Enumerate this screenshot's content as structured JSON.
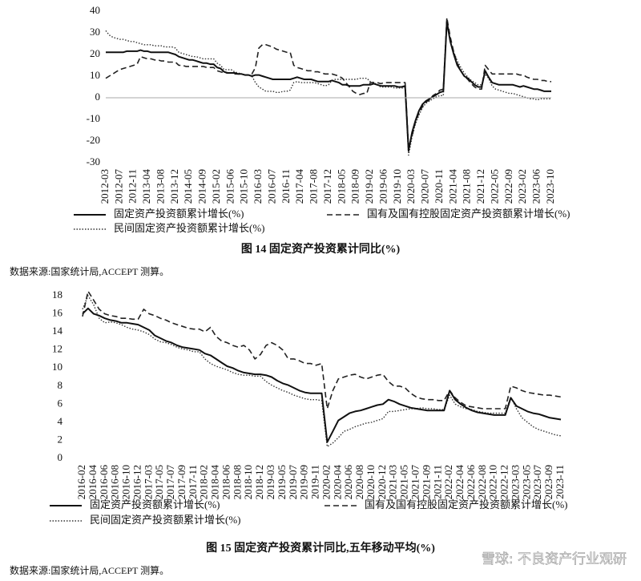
{
  "chart_data": [
    {
      "type": "line",
      "title": "图 14  固定资产投资累计同比(%)",
      "source": "数据来源:国家统计局,ACCEPT 测算。",
      "ylim": [
        -30,
        40
      ],
      "yticks": [
        -30,
        -20,
        -10,
        0,
        10,
        20,
        30,
        40
      ],
      "zero_line": true,
      "categories": [
        "2012-03",
        null,
        null,
        null,
        "2012-07",
        null,
        null,
        null,
        "2012-11",
        null,
        null,
        null,
        "2013-04",
        null,
        null,
        null,
        "2013-08",
        null,
        null,
        null,
        "2013-12",
        null,
        null,
        null,
        "2014-05",
        null,
        null,
        null,
        "2014-09",
        null,
        null,
        null,
        "2015-02",
        null,
        null,
        null,
        "2015-06",
        null,
        null,
        null,
        "2015-10",
        null,
        null,
        null,
        "2016-03",
        null,
        null,
        null,
        "2016-07",
        null,
        null,
        null,
        "2016-11",
        null,
        null,
        null,
        "2017-04",
        null,
        null,
        null,
        "2017-08",
        null,
        null,
        null,
        "2017-12",
        null,
        null,
        null,
        "2018-05",
        null,
        null,
        null,
        "2018-09",
        null,
        null,
        null,
        "2019-02",
        null,
        null,
        null,
        "2019-06",
        null,
        null,
        null,
        "2019-10",
        null,
        null,
        null,
        "2020-03",
        null,
        null,
        null,
        "2020-07",
        null,
        null,
        null,
        "2020-11",
        null,
        null,
        null,
        "2021-04",
        null,
        null,
        null,
        "2021-08",
        null,
        null,
        null,
        "2021-12",
        null,
        null,
        null,
        "2022-05",
        null,
        null,
        null,
        "2022-09",
        null,
        null,
        null,
        "2023-02",
        null,
        null,
        null,
        "2023-06",
        null,
        null,
        null,
        "2023-10"
      ],
      "series": [
        {
          "name": "固定资产投资额累计增长(%)",
          "color": "#111",
          "style": "solid",
          "values": [
            21,
            21,
            21,
            21,
            21,
            21,
            21.5,
            21.5,
            21.5,
            21.5,
            22,
            21.5,
            21.5,
            21,
            21,
            21,
            21,
            21,
            21,
            20.5,
            20,
            19,
            18.5,
            18,
            17.5,
            17.5,
            17,
            16.5,
            16,
            16,
            15.5,
            15.5,
            14,
            13.5,
            12,
            11.5,
            11.5,
            11.5,
            11,
            11,
            10.5,
            10.5,
            10,
            10.5,
            10.5,
            10,
            9.5,
            9,
            8.5,
            8.5,
            8.5,
            8.5,
            8.5,
            8.5,
            9,
            9.5,
            9,
            8.5,
            8.5,
            8.5,
            8,
            7.5,
            7.5,
            7.5,
            7.5,
            8,
            7.5,
            7,
            6,
            6,
            5.5,
            5.5,
            5.5,
            5.5,
            6,
            6,
            6,
            6.5,
            6,
            5.5,
            5.5,
            5.5,
            5.5,
            5.5,
            5,
            5,
            5.5,
            -24.5,
            -16,
            -10.5,
            -6,
            -3,
            -1.5,
            -0.5,
            0.5,
            1.5,
            2.5,
            3,
            35,
            26,
            20,
            15,
            12.5,
            10,
            9,
            7.5,
            6,
            5,
            5,
            12.5,
            9.5,
            7,
            6.5,
            6,
            6,
            6,
            6,
            6,
            5.5,
            5,
            5.5,
            5,
            4.5,
            4,
            4,
            3.5,
            3,
            3,
            3
          ]
        },
        {
          "name": "国有及国有控股固定资产投资额累计增长(%)",
          "color": "#222",
          "style": "dashed",
          "values": [
            9,
            10,
            11,
            12,
            13,
            13.5,
            14,
            14.5,
            15,
            15.5,
            19,
            18.5,
            18,
            18,
            17.5,
            17.5,
            17,
            17,
            16.5,
            16.5,
            16.5,
            15,
            15,
            14.5,
            14.5,
            14.5,
            14.5,
            14.5,
            14.5,
            14,
            14,
            14,
            12.5,
            12,
            11.5,
            11.5,
            11.5,
            11,
            11,
            11,
            10.5,
            10.5,
            11,
            14,
            23,
            24.5,
            24.5,
            24,
            23.5,
            22.5,
            22,
            21.5,
            21,
            21,
            15,
            14,
            13.5,
            13,
            12.5,
            12.5,
            12,
            12,
            11.5,
            11,
            11,
            11,
            10.5,
            10,
            9,
            7,
            5,
            3,
            2,
            1.5,
            2,
            2,
            7,
            7,
            7,
            6.5,
            7,
            7,
            7,
            7,
            7,
            7,
            7,
            -23,
            -17.5,
            -11,
            -7,
            -4,
            -2,
            -1,
            1,
            2,
            3.5,
            4,
            37,
            28,
            21,
            16,
            12.5,
            10,
            8.5,
            6.5,
            5,
            4,
            4,
            15,
            13,
            11,
            11,
            11,
            11,
            11,
            11,
            11,
            11,
            10.5,
            10.5,
            9.5,
            9,
            8.5,
            8.5,
            8,
            8,
            7.5,
            7.5
          ]
        },
        {
          "name": "民间固定资产投资额累计增长(%)",
          "color": "#333",
          "style": "dotted",
          "values": [
            31,
            29,
            28,
            27.5,
            27,
            27,
            26.5,
            26,
            26,
            25.5,
            25,
            24.5,
            24.5,
            24.5,
            24,
            24,
            24,
            23.5,
            23.5,
            23.5,
            23,
            21,
            20.5,
            20,
            19.5,
            19,
            19,
            18.5,
            18,
            18,
            18,
            18,
            16,
            15,
            13,
            13,
            13,
            12,
            11.5,
            11,
            10.5,
            10.5,
            10,
            7,
            5,
            4,
            3,
            3,
            3,
            2.5,
            2.5,
            3,
            3,
            3.5,
            7,
            7.5,
            7,
            7,
            7,
            7,
            7,
            6.5,
            6,
            5.5,
            6,
            8,
            8.5,
            8.5,
            8.5,
            8.5,
            8.5,
            8.5,
            8.5,
            9,
            9,
            9,
            7.5,
            7,
            6,
            5,
            5,
            5,
            5,
            4.5,
            4.5,
            4.5,
            4.5,
            -26.5,
            -18,
            -12,
            -8,
            -4.5,
            -2.5,
            -1.5,
            -0.5,
            0.5,
            1,
            1,
            36.5,
            26,
            21,
            17,
            14,
            11.5,
            9.5,
            8,
            7,
            6,
            6,
            11,
            9,
            5.5,
            4,
            3.5,
            3,
            2.5,
            2,
            2,
            1.5,
            1,
            0.5,
            0,
            -0.5,
            -0.5,
            -1,
            -0.5,
            -0.5,
            -0.5,
            -0.5
          ]
        }
      ]
    },
    {
      "type": "line",
      "title": "图 15 固定资产投资累计同比,五年移动平均(%)",
      "source": "数据来源:国家统计局,ACCEPT 测算。",
      "ylim": [
        0,
        18
      ],
      "yticks": [
        0,
        2,
        4,
        6,
        8,
        10,
        12,
        14,
        16,
        18
      ],
      "categories": [
        "2016-02",
        null,
        "2016-04",
        null,
        "2016-06",
        null,
        "2016-08",
        null,
        "2016-10",
        null,
        "2016-12",
        null,
        "2017-03",
        null,
        "2017-05",
        null,
        "2017-07",
        null,
        "2017-09",
        null,
        "2017-11",
        null,
        "2018-02",
        null,
        "2018-04",
        null,
        "2018-06",
        null,
        "2018-08",
        null,
        "2018-10",
        null,
        "2018-12",
        null,
        "2019-03",
        null,
        "2019-05",
        null,
        "2019-07",
        null,
        "2019-09",
        null,
        "2019-11",
        null,
        "2020-02",
        null,
        "2020-04",
        null,
        "2020-06",
        null,
        "2020-08",
        null,
        "2020-10",
        null,
        "2020-12",
        null,
        "2021-03",
        null,
        "2021-05",
        null,
        "2021-07",
        null,
        "2021-09",
        null,
        "2021-11",
        null,
        "2022-02",
        null,
        "2022-04",
        null,
        "2022-06",
        null,
        "2022-08",
        null,
        "2022-10",
        null,
        "2022-12",
        null,
        "2023-03",
        null,
        "2023-05",
        null,
        "2023-07",
        null,
        "2023-09",
        null,
        "2023-11"
      ],
      "series": [
        {
          "name": "固定资产投资额累计增长(%)",
          "color": "#111",
          "style": "solid",
          "values": [
            16,
            16.6,
            16,
            15.8,
            15.5,
            15.3,
            15.2,
            15,
            15,
            14.9,
            14.8,
            14.5,
            14.2,
            13.6,
            13.3,
            13,
            12.8,
            12.5,
            12.3,
            12.2,
            12.1,
            12,
            11.6,
            11.4,
            11,
            10.6,
            10.2,
            10,
            9.7,
            9.5,
            9.4,
            9.3,
            9.3,
            9.2,
            9,
            8.6,
            8.3,
            8.1,
            7.8,
            7.5,
            7.3,
            7.2,
            7.2,
            7.2,
            1.8,
            3,
            4.2,
            4.6,
            5,
            5.2,
            5.3,
            5.5,
            5.7,
            5.9,
            6,
            6.5,
            6.3,
            6,
            5.8,
            5.6,
            5.5,
            5.4,
            5.3,
            5.3,
            5.3,
            5.3,
            7.5,
            6.5,
            6,
            5.6,
            5.3,
            5.1,
            5,
            4.9,
            4.8,
            4.8,
            4.8,
            6.7,
            5.8,
            5.5,
            5.2,
            5,
            4.9,
            4.7,
            4.5,
            4.4,
            4.3
          ]
        },
        {
          "name": "国有及国有控股固定资产投资额累计增长(%)",
          "color": "#222",
          "style": "dashed",
          "values": [
            15.7,
            18.5,
            17.5,
            16.5,
            16,
            15.8,
            15.7,
            15.5,
            15.5,
            15.4,
            15.4,
            16.5,
            16,
            15.8,
            15.5,
            15.3,
            15,
            14.8,
            14.6,
            14.4,
            14.3,
            14.3,
            14,
            14.5,
            13.5,
            13,
            12.8,
            12.5,
            12.3,
            12.5,
            12,
            11,
            11.5,
            12.5,
            12.8,
            12.5,
            12,
            11,
            11,
            10.8,
            10.5,
            10.5,
            10.3,
            10.5,
            5.5,
            7.5,
            8.8,
            9,
            9.2,
            9.3,
            9,
            8.8,
            9,
            9.2,
            9.3,
            8.5,
            8,
            8,
            7.8,
            7.2,
            6.8,
            6.6,
            6.5,
            6.5,
            6.4,
            6.4,
            7.5,
            6.7,
            6.2,
            5.8,
            5.7,
            5.6,
            5.5,
            5.5,
            5.5,
            5.5,
            5.5,
            8,
            7.8,
            7.5,
            7.3,
            7.2,
            7.1,
            7,
            7,
            6.9,
            6.8
          ]
        },
        {
          "name": "民间固定资产投资额累计增长(%)",
          "color": "#333",
          "style": "dotted",
          "values": [
            16.5,
            18,
            17,
            15.5,
            15,
            15.1,
            15,
            14.8,
            14.5,
            14.3,
            14.2,
            14,
            13.7,
            13.2,
            12.9,
            12.8,
            12.6,
            12.3,
            12.1,
            12,
            11.8,
            11.8,
            11,
            10.5,
            10.2,
            10,
            9.8,
            9.5,
            9.3,
            9.2,
            9.2,
            9.1,
            9.1,
            8.5,
            8.1,
            7.8,
            7.5,
            7.3,
            7,
            6.8,
            6.6,
            6.5,
            6.5,
            6.4,
            1.3,
            1.7,
            2.3,
            3,
            3.2,
            3.5,
            3.7,
            3.9,
            4,
            4.2,
            4.4,
            5.2,
            5.2,
            5.3,
            5.4,
            5.5,
            5.5,
            5.6,
            5.5,
            5.5,
            5.4,
            5.4,
            7,
            6,
            5.7,
            5.5,
            5.4,
            5.2,
            5.1,
            5,
            5,
            5,
            5,
            6.8,
            5.5,
            4.5,
            4,
            3.5,
            3.2,
            3,
            2.8,
            2.6,
            2.5
          ]
        }
      ]
    }
  ],
  "watermark": "雪球: 不良资产行业观研"
}
